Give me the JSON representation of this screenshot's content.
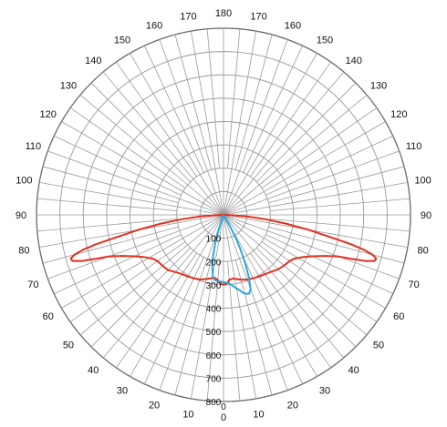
{
  "chart_data": {
    "type": "polar-line",
    "title": "",
    "angular_axis": {
      "unit": "degrees",
      "zero_direction": "down",
      "symmetric": true,
      "major_step": 10,
      "minor_step": 5,
      "labels": [
        {
          "angle": 0,
          "text": "0"
        },
        {
          "angle": 10,
          "text": "10"
        },
        {
          "angle": 20,
          "text": "20"
        },
        {
          "angle": 30,
          "text": "30"
        },
        {
          "angle": 40,
          "text": "40"
        },
        {
          "angle": 50,
          "text": "50"
        },
        {
          "angle": 60,
          "text": "60"
        },
        {
          "angle": 70,
          "text": "70"
        },
        {
          "angle": 80,
          "text": "80"
        },
        {
          "angle": 90,
          "text": "90"
        },
        {
          "angle": 100,
          "text": "100"
        },
        {
          "angle": 110,
          "text": "110"
        },
        {
          "angle": 120,
          "text": "120"
        },
        {
          "angle": 130,
          "text": "130"
        },
        {
          "angle": 140,
          "text": "140"
        },
        {
          "angle": 150,
          "text": "150"
        },
        {
          "angle": 160,
          "text": "160"
        },
        {
          "angle": 170,
          "text": "170"
        },
        {
          "angle": 180,
          "text": "180"
        },
        {
          "angle": -170,
          "text": "170"
        },
        {
          "angle": -160,
          "text": "160"
        },
        {
          "angle": -150,
          "text": "150"
        },
        {
          "angle": -140,
          "text": "140"
        },
        {
          "angle": -130,
          "text": "130"
        },
        {
          "angle": -120,
          "text": "120"
        },
        {
          "angle": -110,
          "text": "110"
        },
        {
          "angle": -100,
          "text": "100"
        },
        {
          "angle": -90,
          "text": "90"
        },
        {
          "angle": -80,
          "text": "80"
        },
        {
          "angle": -70,
          "text": "70"
        },
        {
          "angle": -60,
          "text": "60"
        },
        {
          "angle": -50,
          "text": "50"
        },
        {
          "angle": -40,
          "text": "40"
        },
        {
          "angle": -30,
          "text": "30"
        },
        {
          "angle": -20,
          "text": "20"
        },
        {
          "angle": -10,
          "text": "10"
        }
      ]
    },
    "radial_axis": {
      "range": [
        0,
        800
      ],
      "ticks": [
        100,
        200,
        300,
        400,
        500,
        600,
        700,
        800
      ],
      "tick_labels": [
        "100",
        "200",
        "300",
        "400",
        "500",
        "600",
        "700",
        "800"
      ],
      "center_label": "0"
    },
    "series": [
      {
        "color": "#e0301e",
        "points": [
          [
            -90,
            0
          ],
          [
            -88,
            40
          ],
          [
            -86,
            100
          ],
          [
            -84,
            180
          ],
          [
            -82,
            270
          ],
          [
            -80,
            370
          ],
          [
            -78,
            480
          ],
          [
            -77,
            560
          ],
          [
            -76,
            620
          ],
          [
            -75,
            660
          ],
          [
            -74,
            680
          ],
          [
            -73,
            675
          ],
          [
            -72,
            640
          ],
          [
            -71,
            580
          ],
          [
            -70,
            520
          ],
          [
            -68,
            470
          ],
          [
            -65,
            420
          ],
          [
            -62,
            385
          ],
          [
            -58,
            355
          ],
          [
            -55,
            345
          ],
          [
            -50,
            340
          ],
          [
            -45,
            335
          ],
          [
            -40,
            320
          ],
          [
            -35,
            310
          ],
          [
            -30,
            305
          ],
          [
            -25,
            300
          ],
          [
            -20,
            295
          ],
          [
            -15,
            285
          ],
          [
            -10,
            275
          ],
          [
            -8,
            272
          ],
          [
            -5,
            280
          ],
          [
            -3,
            292
          ],
          [
            0,
            300
          ],
          [
            3,
            294
          ],
          [
            5,
            280
          ],
          [
            8,
            276
          ],
          [
            10,
            278
          ],
          [
            15,
            288
          ],
          [
            20,
            295
          ],
          [
            25,
            300
          ],
          [
            30,
            305
          ],
          [
            35,
            310
          ],
          [
            40,
            318
          ],
          [
            45,
            330
          ],
          [
            50,
            338
          ],
          [
            55,
            345
          ],
          [
            58,
            355
          ],
          [
            62,
            385
          ],
          [
            65,
            420
          ],
          [
            68,
            470
          ],
          [
            70,
            520
          ],
          [
            71,
            580
          ],
          [
            72,
            640
          ],
          [
            73,
            675
          ],
          [
            74,
            680
          ],
          [
            75,
            660
          ],
          [
            76,
            620
          ],
          [
            77,
            560
          ],
          [
            78,
            480
          ],
          [
            80,
            370
          ],
          [
            82,
            270
          ],
          [
            84,
            180
          ],
          [
            86,
            100
          ],
          [
            88,
            40
          ],
          [
            90,
            0
          ]
        ]
      },
      {
        "color": "#2aa8de",
        "points": [
          [
            -20,
            0
          ],
          [
            -18,
            70
          ],
          [
            -16,
            130
          ],
          [
            -14,
            185
          ],
          [
            -12,
            230
          ],
          [
            -10,
            265
          ],
          [
            -8,
            280
          ],
          [
            -6,
            285
          ],
          [
            -3,
            286
          ],
          [
            0,
            288
          ],
          [
            3,
            292
          ],
          [
            6,
            300
          ],
          [
            9,
            315
          ],
          [
            12,
            330
          ],
          [
            14,
            345
          ],
          [
            16,
            352
          ],
          [
            18,
            355
          ],
          [
            20,
            340
          ],
          [
            22,
            290
          ],
          [
            24,
            230
          ],
          [
            26,
            170
          ],
          [
            28,
            110
          ],
          [
            30,
            50
          ],
          [
            32,
            0
          ]
        ]
      }
    ]
  }
}
